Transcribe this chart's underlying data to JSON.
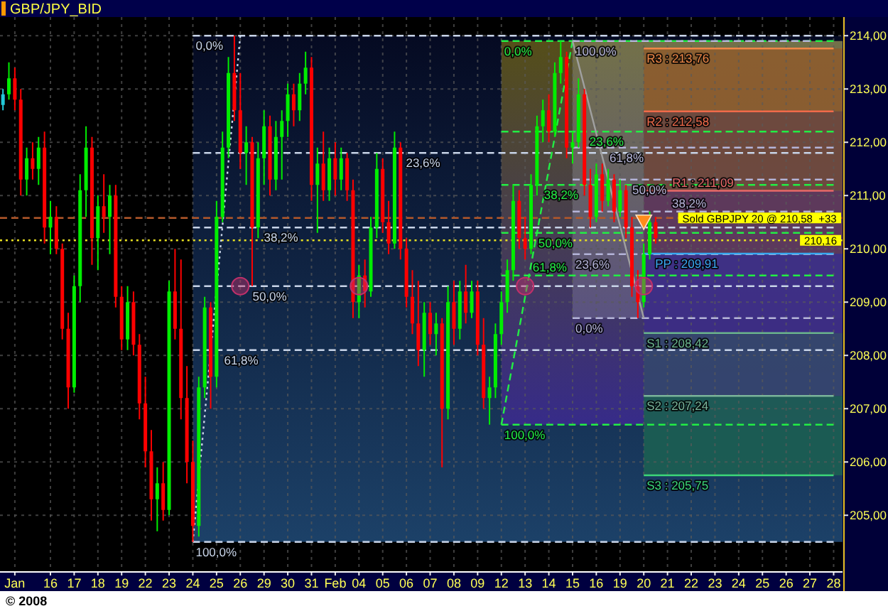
{
  "chart_data": {
    "type": "candlestick",
    "title": "GBP/JPY_BID",
    "categories": [
      null,
      null,
      "Jan",
      null,
      null,
      null,
      null,
      null,
      "16",
      null,
      null,
      null,
      "17",
      null,
      null,
      null,
      "18",
      null,
      null,
      null,
      "19",
      null,
      null,
      null,
      "22",
      null,
      null,
      null,
      "23",
      null,
      null,
      null,
      "24",
      null,
      null,
      null,
      "25",
      null,
      null,
      null,
      "26",
      null,
      null,
      null,
      "29",
      null,
      null,
      null,
      "30",
      null,
      null,
      null,
      "31",
      null,
      null,
      null,
      "Feb",
      null,
      null,
      null,
      "04",
      null,
      null,
      null,
      "05",
      null,
      null,
      null,
      "06",
      null,
      null,
      null,
      "07",
      null,
      null,
      null,
      "08",
      null,
      null,
      null,
      "09",
      null,
      null,
      null,
      "12",
      null,
      null,
      null,
      "13",
      null,
      null,
      null,
      "14",
      null,
      null,
      null,
      "15",
      null,
      null,
      null,
      "16",
      null,
      null,
      null,
      "19",
      null,
      null,
      null,
      "20",
      null,
      null,
      null,
      "21",
      null,
      null,
      null,
      "22",
      null,
      null,
      null,
      "23",
      null,
      null,
      null,
      "24",
      null,
      null,
      null,
      "25",
      null,
      null,
      null,
      "26",
      null,
      null,
      null,
      "27",
      null,
      null,
      null,
      "28",
      null
    ],
    "ylim": [
      203.95,
      214.35
    ],
    "yticks": [
      {
        "value": 205,
        "label": "205,00"
      },
      {
        "value": 206,
        "label": "206,00"
      },
      {
        "value": 207,
        "label": "207,00"
      },
      {
        "value": 208,
        "label": "208,00"
      },
      {
        "value": 209,
        "label": "209,00"
      },
      {
        "value": 210,
        "label": "210,00"
      },
      {
        "value": 211,
        "label": "211,00"
      },
      {
        "value": 212,
        "label": "212,00"
      },
      {
        "value": 213,
        "label": "213,00"
      },
      {
        "value": 214,
        "label": "214,00"
      }
    ],
    "grid": true,
    "ref_lines": [
      {
        "axis": "y",
        "value": 210.58,
        "label": "Sold GBPJPY 20 @ 210,58  +33",
        "color": "#b4582a",
        "line_style": "dashed"
      },
      {
        "axis": "y",
        "value": 210.16,
        "label": "210,16",
        "color": "#e8e020",
        "line_style": "dotted"
      }
    ],
    "annotations": [
      "© 2008"
    ],
    "series": [
      {
        "type": "line",
        "name": "0,0%",
        "color": "#c8d4e8",
        "line_style": "dashed",
        "x": [
          "24",
          "28"
        ],
        "values": [
          214.0,
          214.0
        ]
      },
      {
        "type": "line",
        "name": "23,6%",
        "color": "#c8d4e8",
        "line_style": "dashed",
        "x": [
          "24",
          "28"
        ],
        "values": [
          211.8,
          211.8
        ]
      },
      {
        "type": "line",
        "name": "38,2%",
        "color": "#c8d4e8",
        "line_style": "dashed",
        "x": [
          "24",
          "28"
        ],
        "values": [
          210.4,
          210.4
        ]
      },
      {
        "type": "line",
        "name": "50,0%",
        "color": "#c8d4e8",
        "line_style": "dashed",
        "x": [
          "24",
          "28"
        ],
        "values": [
          209.3,
          209.3
        ]
      },
      {
        "type": "line",
        "name": "61,8%",
        "color": "#c8d4e8",
        "line_style": "dashed",
        "x": [
          "24",
          "28"
        ],
        "values": [
          208.1,
          208.1
        ]
      },
      {
        "type": "line",
        "name": "100,0%",
        "color": "#c8d4e8",
        "line_style": "dashed",
        "x": [
          "24",
          "28"
        ],
        "values": [
          204.5,
          204.5
        ]
      },
      {
        "type": "line",
        "color": "#c8d4e8",
        "line_style": "dotted",
        "x": [
          "24",
          "26"
        ],
        "values": [
          204.5,
          214.0
        ]
      },
      {
        "type": "line",
        "name": "0,0%",
        "color": "#22ee44",
        "line_style": "dashed",
        "x": [
          "12",
          "28"
        ],
        "values": [
          213.9,
          213.9
        ]
      },
      {
        "type": "line",
        "name": "23,6%",
        "color": "#22ee44",
        "line_style": "dashed",
        "x": [
          "12",
          "28"
        ],
        "values": [
          212.2,
          212.2
        ]
      },
      {
        "type": "line",
        "name": "38,2%",
        "color": "#22ee44",
        "line_style": "dashed",
        "x": [
          "12",
          "28"
        ],
        "values": [
          211.2,
          211.2
        ]
      },
      {
        "type": "line",
        "name": "50,0%",
        "color": "#22ee44",
        "line_style": "dashed",
        "x": [
          "12",
          "28"
        ],
        "values": [
          210.3,
          210.3
        ]
      },
      {
        "type": "line",
        "name": "61,8%",
        "color": "#22ee44",
        "line_style": "dashed",
        "x": [
          "12",
          "28"
        ],
        "values": [
          209.5,
          209.5
        ]
      },
      {
        "type": "line",
        "name": "100,0%",
        "color": "#22ee44",
        "line_style": "dashed",
        "x": [
          "12",
          "28"
        ],
        "values": [
          206.7,
          206.7
        ]
      },
      {
        "type": "line",
        "color": "#22ee44",
        "line_style": "dashed",
        "x": [
          "12",
          "15"
        ],
        "values": [
          206.7,
          213.9
        ]
      },
      {
        "type": "line",
        "name": "100,0%",
        "color": "#b4b4d8",
        "line_style": "dashed",
        "x": [
          "15",
          "27"
        ],
        "values": [
          213.9,
          213.9
        ]
      },
      {
        "type": "line",
        "name": "61,8%",
        "color": "#b4b4d8",
        "line_style": "dashed",
        "x": [
          "15",
          "28"
        ],
        "values": [
          211.9,
          211.9
        ]
      },
      {
        "type": "line",
        "name": "50,0%",
        "color": "#b4b4d8",
        "line_style": "dashed",
        "x": [
          "15",
          "28"
        ],
        "values": [
          211.3,
          211.3
        ]
      },
      {
        "type": "line",
        "name": "38,2%",
        "color": "#b4b4d8",
        "line_style": "dashed",
        "x": [
          "15",
          "28"
        ],
        "values": [
          210.7,
          210.7
        ]
      },
      {
        "type": "line",
        "name": "23,6%",
        "color": "#b4b4d8",
        "line_style": "dashed",
        "x": [
          "15",
          "28"
        ],
        "values": [
          209.9,
          209.9
        ]
      },
      {
        "type": "line",
        "name": "0,0%",
        "color": "#b4b4d8",
        "line_style": "dashed",
        "x": [
          "15",
          "28"
        ],
        "values": [
          208.7,
          208.7
        ]
      },
      {
        "type": "line",
        "color": "#a0a0a0",
        "line_style": "solid",
        "x": [
          "15",
          "20"
        ],
        "values": [
          213.9,
          208.7
        ]
      },
      {
        "type": "line",
        "name": "R3 : 213,76",
        "color": "#f08848",
        "line_style": "solid",
        "x": [
          "20",
          "28"
        ],
        "values": [
          213.76,
          213.76
        ]
      },
      {
        "type": "line",
        "name": "R2 : 212,58",
        "color": "#f06a4a",
        "line_style": "solid",
        "x": [
          "20",
          "28"
        ],
        "values": [
          212.58,
          212.58
        ]
      },
      {
        "type": "line",
        "name": "R1 : 211,09",
        "color": "#e86868",
        "line_style": "solid",
        "x": [
          "20",
          "28"
        ],
        "values": [
          211.09,
          211.09
        ]
      },
      {
        "type": "line",
        "name": "PP : 209,91",
        "color": "#38a8f0",
        "line_style": "solid",
        "x": [
          "20",
          "28"
        ],
        "values": [
          209.91,
          209.91
        ]
      },
      {
        "type": "line",
        "name": "S1 : 208,42",
        "color": "#6ab48c",
        "line_style": "solid",
        "x": [
          "20",
          "28"
        ],
        "values": [
          208.42,
          208.42
        ]
      },
      {
        "type": "line",
        "name": "S2 : 207,24",
        "color": "#7ab49a",
        "line_style": "solid",
        "x": [
          "20",
          "28"
        ],
        "values": [
          207.24,
          207.24
        ]
      },
      {
        "type": "line",
        "name": "S3 : 205,75",
        "color": "#3cd878",
        "line_style": "solid",
        "x": [
          "20",
          "28"
        ],
        "values": [
          205.75,
          205.75
        ]
      },
      {
        "ohlc": [
          [
            212.7,
            213.0,
            212.6,
            212.9
          ],
          [
            212.9,
            213.5,
            212.8,
            213.2
          ],
          [
            213.2,
            213.4,
            212.6,
            212.8
          ],
          [
            212.8,
            213.0,
            211.0,
            211.3
          ],
          [
            211.3,
            211.9,
            211.0,
            211.7
          ],
          [
            211.7,
            212.0,
            211.3,
            211.5
          ],
          [
            211.5,
            212.1,
            211.2,
            211.9
          ],
          [
            211.9,
            212.2,
            210.1,
            210.4
          ],
          [
            210.4,
            210.9,
            209.9,
            210.6
          ],
          [
            210.6,
            210.8,
            209.9,
            210.0
          ],
          [
            210.0,
            210.1,
            208.3,
            208.5
          ],
          [
            208.5,
            208.8,
            207.0,
            207.4
          ],
          [
            207.4,
            209.5,
            207.3,
            209.3
          ],
          [
            209.3,
            211.4,
            209.0,
            211.1
          ],
          [
            211.1,
            212.3,
            210.6,
            211.9
          ],
          [
            211.9,
            212.1,
            209.7,
            210.2
          ],
          [
            210.2,
            211.0,
            209.6,
            210.8
          ],
          [
            210.8,
            211.4,
            210.3,
            210.6
          ],
          [
            210.6,
            211.2,
            209.9,
            211.0
          ],
          [
            211.0,
            211.2,
            208.9,
            209.1
          ],
          [
            209.1,
            209.3,
            208.1,
            208.3
          ],
          [
            208.3,
            209.3,
            208.1,
            209.0
          ],
          [
            209.0,
            209.2,
            208.0,
            208.2
          ],
          [
            208.2,
            208.4,
            206.8,
            207.1
          ],
          [
            207.1,
            207.6,
            205.9,
            206.2
          ],
          [
            206.2,
            206.6,
            204.9,
            205.3
          ],
          [
            205.3,
            205.9,
            204.7,
            205.6
          ],
          [
            205.6,
            206.0,
            204.9,
            205.1
          ],
          [
            205.1,
            209.4,
            205.0,
            209.2
          ],
          [
            209.2,
            210.0,
            208.3,
            208.5
          ],
          [
            208.5,
            209.8,
            206.8,
            207.2
          ],
          [
            207.2,
            207.8,
            205.6,
            206.0
          ],
          [
            206.0,
            206.4,
            204.5,
            204.8
          ],
          [
            204.8,
            207.6,
            204.6,
            207.4
          ],
          [
            207.4,
            209.1,
            207.2,
            208.9
          ],
          [
            208.9,
            209.0,
            207.0,
            207.6
          ],
          [
            207.6,
            210.9,
            207.4,
            210.6
          ],
          [
            210.6,
            212.2,
            210.5,
            211.9
          ],
          [
            211.9,
            213.6,
            211.7,
            213.3
          ],
          [
            213.3,
            214.0,
            212.4,
            212.6
          ],
          [
            212.6,
            213.3,
            211.5,
            211.8
          ],
          [
            211.8,
            212.3,
            211.2,
            212.0
          ],
          [
            212.0,
            212.1,
            209.3,
            210.4
          ],
          [
            210.4,
            212.0,
            210.2,
            211.7
          ],
          [
            211.7,
            212.6,
            211.2,
            212.3
          ],
          [
            212.3,
            212.5,
            211.0,
            211.3
          ],
          [
            211.3,
            212.4,
            211.1,
            212.1
          ],
          [
            212.1,
            212.6,
            211.3,
            212.4
          ],
          [
            212.4,
            213.1,
            212.1,
            212.9
          ],
          [
            212.9,
            213.1,
            212.3,
            212.6
          ],
          [
            212.6,
            213.3,
            212.4,
            213.1
          ],
          [
            213.1,
            213.7,
            212.9,
            213.4
          ],
          [
            213.4,
            213.6,
            210.9,
            211.2
          ],
          [
            211.2,
            211.9,
            210.3,
            211.6
          ],
          [
            211.6,
            212.2,
            210.9,
            211.1
          ],
          [
            211.1,
            211.9,
            210.9,
            211.7
          ],
          [
            211.7,
            212.0,
            211.0,
            211.3
          ],
          [
            211.3,
            211.9,
            211.1,
            211.7
          ],
          [
            211.7,
            211.8,
            210.9,
            211.1
          ],
          [
            211.1,
            211.3,
            208.7,
            209.0
          ],
          [
            209.0,
            209.7,
            208.7,
            209.5
          ],
          [
            209.5,
            209.8,
            208.9,
            209.2
          ],
          [
            209.2,
            210.6,
            209.1,
            210.4
          ],
          [
            210.4,
            211.8,
            210.2,
            211.5
          ],
          [
            211.5,
            211.7,
            210.3,
            210.5
          ],
          [
            210.5,
            210.9,
            209.9,
            210.1
          ],
          [
            210.1,
            212.2,
            210.0,
            211.9
          ],
          [
            211.9,
            212.0,
            209.8,
            210.0
          ],
          [
            210.0,
            210.2,
            208.9,
            209.1
          ],
          [
            209.1,
            209.6,
            208.4,
            208.6
          ],
          [
            208.6,
            209.4,
            207.8,
            208.1
          ],
          [
            208.1,
            209.0,
            207.6,
            208.8
          ],
          [
            208.8,
            209.0,
            208.2,
            208.4
          ],
          [
            208.4,
            208.8,
            208.0,
            208.6
          ],
          [
            208.6,
            208.7,
            205.9,
            207.0
          ],
          [
            207.0,
            209.3,
            206.8,
            209.0
          ],
          [
            209.0,
            209.4,
            208.2,
            208.5
          ],
          [
            208.5,
            209.4,
            208.3,
            209.2
          ],
          [
            209.2,
            209.7,
            208.6,
            208.8
          ],
          [
            208.8,
            209.4,
            208.7,
            209.2
          ],
          [
            209.2,
            209.4,
            208.0,
            208.2
          ],
          [
            208.2,
            208.7,
            207.0,
            207.2
          ],
          [
            207.2,
            207.6,
            206.7,
            207.4
          ],
          [
            207.4,
            208.6,
            207.2,
            208.4
          ],
          [
            208.4,
            209.2,
            208.2,
            209.0
          ],
          [
            209.0,
            209.8,
            208.8,
            209.6
          ],
          [
            209.6,
            211.2,
            209.4,
            210.9
          ],
          [
            210.9,
            211.1,
            210.0,
            210.2
          ],
          [
            210.2,
            210.6,
            209.8,
            210.0
          ],
          [
            210.0,
            211.4,
            209.9,
            211.2
          ],
          [
            211.2,
            212.5,
            211.0,
            212.3
          ],
          [
            212.3,
            212.8,
            212.0,
            212.6
          ],
          [
            212.6,
            212.9,
            212.0,
            212.2
          ],
          [
            212.2,
            213.5,
            212.1,
            213.3
          ],
          [
            213.3,
            213.9,
            213.1,
            213.6
          ],
          [
            213.6,
            213.7,
            211.7,
            211.9
          ],
          [
            211.9,
            212.2,
            211.6,
            212.0
          ],
          [
            212.0,
            213.2,
            211.9,
            212.9
          ],
          [
            212.9,
            213.0,
            211.0,
            211.2
          ],
          [
            211.2,
            211.5,
            210.4,
            210.6
          ],
          [
            210.6,
            211.6,
            210.5,
            211.4
          ],
          [
            211.4,
            211.6,
            210.7,
            210.9
          ],
          [
            210.9,
            211.5,
            210.8,
            211.3
          ],
          [
            211.3,
            211.4,
            210.5,
            210.7
          ],
          [
            210.7,
            211.3,
            210.6,
            211.1
          ],
          [
            211.1,
            211.2,
            210.2,
            210.4
          ],
          [
            210.4,
            210.6,
            209.1,
            209.3
          ],
          [
            209.3,
            209.6,
            208.7,
            209.0
          ],
          [
            209.0,
            210.1,
            208.9,
            209.9
          ],
          [
            209.9,
            210.7,
            209.8,
            210.5
          ],
          [
            210.5,
            210.6,
            210.1,
            210.2
          ],
          null,
          null,
          null,
          null,
          null,
          null,
          null,
          null,
          null,
          null,
          null,
          null,
          null,
          null,
          null,
          null,
          null,
          null,
          null,
          null,
          null,
          null,
          null,
          null,
          null,
          null,
          null,
          null,
          null,
          null,
          null
        ],
        "colors": [
          "#22c8d8",
          "#00ee00",
          "#ff0000",
          "#ff0000",
          "#00ee00",
          "#ff0000",
          "#00ee00",
          "#ff0000",
          "#00ee00",
          "#ff0000",
          "#ff0000",
          "#ff0000",
          "#00ee00",
          "#00ee00",
          "#00ee00",
          "#ff0000",
          "#00ee00",
          "#ff0000",
          "#00ee00",
          "#ff0000",
          "#ff0000",
          "#00ee00",
          "#ff0000",
          "#ff0000",
          "#ff0000",
          "#ff0000",
          "#00ee00",
          "#ff0000",
          "#00ee00",
          "#ff0000",
          "#ff0000",
          "#ff0000",
          "#ff0000",
          "#00ee00",
          "#00ee00",
          "#ff0000",
          "#00ee00",
          "#00ee00",
          "#00ee00",
          "#ff0000",
          "#ff0000",
          "#00ee00",
          "#ff0000",
          "#00ee00",
          "#00ee00",
          "#ff0000",
          "#00ee00",
          "#00ee00",
          "#00ee00",
          "#ff0000",
          "#00ee00",
          "#00ee00",
          "#ff0000",
          "#00ee00",
          "#ff0000",
          "#00ee00",
          "#ff0000",
          "#00ee00",
          "#ff0000",
          "#ff0000",
          "#00ee00",
          "#ff0000",
          "#00ee00",
          "#00ee00",
          "#ff0000",
          "#ff0000",
          "#00ee00",
          "#ff0000",
          "#ff0000",
          "#ff0000",
          "#ff0000",
          "#00ee00",
          "#ff0000",
          "#00ee00",
          "#ff0000",
          "#00ee00",
          "#ff0000",
          "#00ee00",
          "#ff0000",
          "#00ee00",
          "#ff0000",
          "#ff0000",
          "#00ee00",
          "#00ee00",
          "#00ee00",
          "#00ee00",
          "#00ee00",
          "#ff0000",
          "#ff0000",
          "#00ee00",
          "#00ee00",
          "#00ee00",
          "#ff0000",
          "#00ee00",
          "#00ee00",
          "#ff0000",
          "#00ee00",
          "#00ee00",
          "#ff0000",
          "#ff0000",
          "#00ee00",
          "#ff0000",
          "#00ee00",
          "#ff0000",
          "#00ee00",
          "#ff0000",
          "#ff0000",
          "#ff0000",
          "#00ee00",
          "#00ee00",
          "#ff0000",
          null,
          null,
          null,
          null,
          null,
          null,
          null,
          null,
          null,
          null,
          null,
          null,
          null,
          null,
          null,
          null,
          null,
          null,
          null,
          null,
          null,
          null,
          null,
          null,
          null,
          null,
          null,
          null,
          null,
          null,
          null
        ]
      },
      {
        "type": "scatter",
        "marker": "circle",
        "color": "#c0306a",
        "x": [
          "26",
          "04",
          "13",
          "20"
        ],
        "values": [
          209.3,
          209.3,
          209.3,
          209.3
        ]
      },
      {
        "type": "scatter",
        "marker": "triangle",
        "color": "#ff8c1a",
        "x": [
          "20"
        ],
        "values": [
          210.5
        ]
      }
    ]
  }
}
